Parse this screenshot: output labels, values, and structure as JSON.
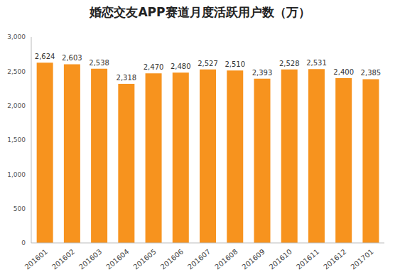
{
  "chart_data": {
    "type": "bar",
    "title": "婚恋交友APP赛道月度活跃用户数（万）",
    "categories": [
      "201601",
      "201602",
      "201603",
      "201604",
      "201605",
      "201606",
      "201607",
      "201608",
      "201609",
      "201610",
      "201611",
      "201612",
      "201701"
    ],
    "values": [
      2624,
      2603,
      2538,
      2318,
      2470,
      2480,
      2527,
      2510,
      2393,
      2528,
      2531,
      2400,
      2385
    ],
    "value_labels": [
      "2,624",
      "2,603",
      "2,538",
      "2,318",
      "2,470",
      "2,480",
      "2,527",
      "2,510",
      "2,393",
      "2,528",
      "2,531",
      "2,400",
      "2,385"
    ],
    "color": "#f7931e",
    "ylim": [
      0,
      3000
    ],
    "yticks": [
      0,
      500,
      {
        "value": 1000,
        "label": "1,000"
      },
      {
        "value": 1500,
        "label": "1,500"
      },
      {
        "value": 2000,
        "label": "2,000"
      },
      {
        "value": 2500,
        "label": "2,500"
      },
      {
        "value": 3000,
        "label": "3,000"
      }
    ],
    "grid": false,
    "data_labels": true
  }
}
